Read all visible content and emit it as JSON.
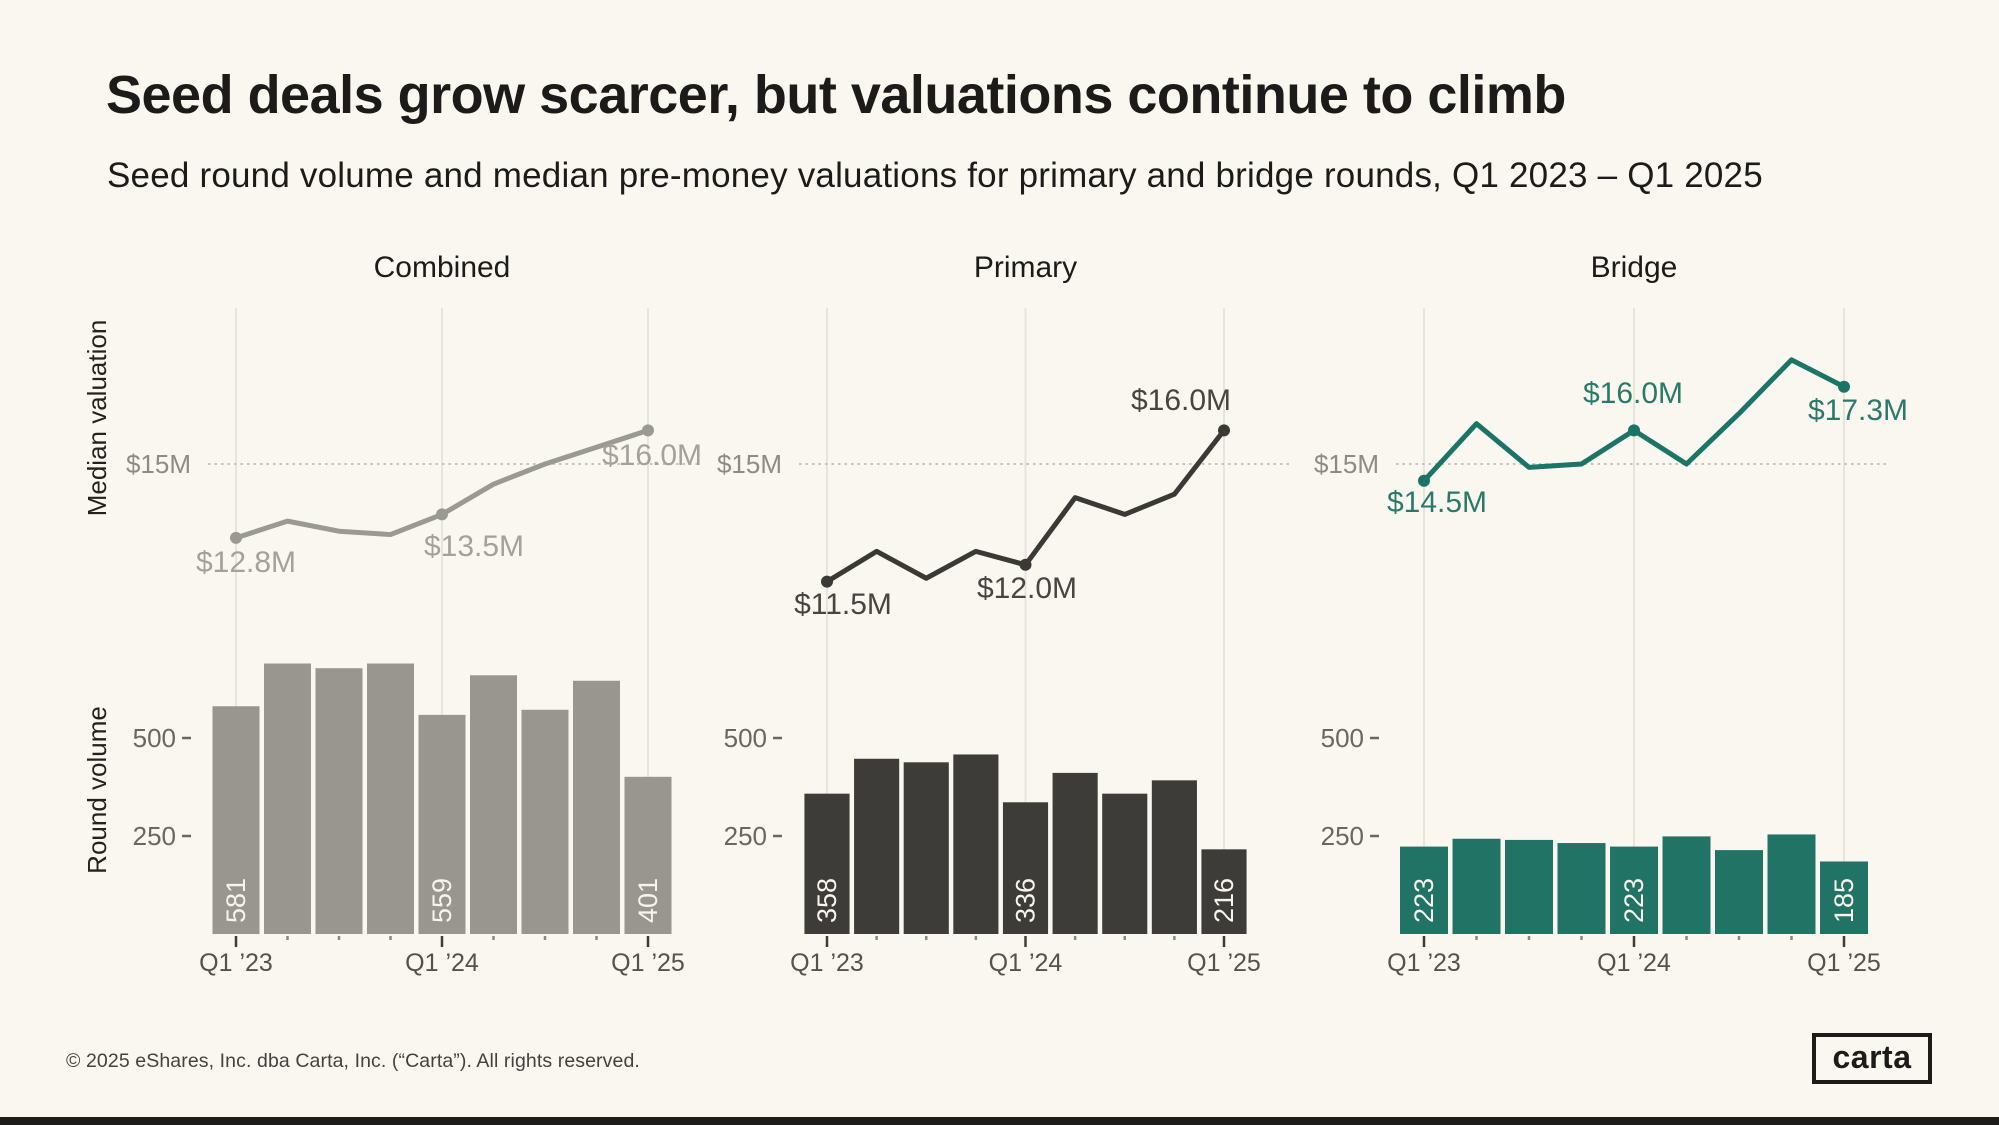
{
  "page": {
    "title": "Seed deals grow scarcer, but valuations continue to climb",
    "subtitle": "Seed round volume and median pre-money valuations for primary and bridge rounds, Q1 2023 – Q1 2025",
    "footer": "© 2025 eShares, Inc. dba Carta, Inc. (“Carta”). All rights reserved.",
    "logo_text": "carta"
  },
  "colors": {
    "background": "#FAF7F0",
    "ink": "#1C1B19",
    "bottom_bar": "#1D1C1A",
    "grid": "#E9E4DB",
    "dotted_line": "#C7C2BA",
    "tick_label": "#6B6760",
    "gridline_value_label": "#8F8B84",
    "x_label": "#55524B",
    "axis_title": "#23221F",
    "bar_value_text": "#F8F4EC",
    "combined": "#98968F",
    "combined_line": "#9B9994",
    "combined_label": "#A4A09A",
    "primary": "#3E3C39",
    "primary_line": "#3B3936",
    "primary_label": "#474542",
    "bridge": "#207365",
    "bridge_line": "#1B7566",
    "bridge_label": "#2A7A6A"
  },
  "axes": {
    "valuation_axis_title": "Median valuation",
    "volume_axis_title": "Round volume",
    "valuation_gridline": {
      "value": 15,
      "label": "$15M"
    },
    "volume_ticks": [
      {
        "value": 500,
        "label": "500"
      },
      {
        "value": 250,
        "label": "250"
      }
    ],
    "x_tick_labels": [
      "Q1 ’23",
      "Q1 ’24",
      "Q1 ’25"
    ]
  },
  "chart_data": [
    {
      "type": "line+bar",
      "title": "Combined",
      "x": [
        "Q1 '23",
        "Q2 '23",
        "Q3 '23",
        "Q4 '23",
        "Q1 '24",
        "Q2 '24",
        "Q3 '24",
        "Q4 '24",
        "Q1 '25"
      ],
      "median_valuation_musd": [
        12.8,
        13.3,
        13.0,
        12.9,
        13.5,
        14.4,
        15.0,
        15.5,
        16.0
      ],
      "valuation_point_labels": [
        {
          "index": 0,
          "label": "$12.8M"
        },
        {
          "index": 4,
          "label": "$13.5M"
        },
        {
          "index": 8,
          "label": "$16.0M"
        }
      ],
      "round_volume": [
        581,
        690,
        678,
        690,
        559,
        660,
        572,
        646,
        401
      ],
      "volume_bar_labels": [
        {
          "index": 0,
          "label": "581"
        },
        {
          "index": 4,
          "label": "559"
        },
        {
          "index": 8,
          "label": "401"
        }
      ],
      "color_key": "combined"
    },
    {
      "type": "line+bar",
      "title": "Primary",
      "x": [
        "Q1 '23",
        "Q2 '23",
        "Q3 '23",
        "Q4 '23",
        "Q1 '24",
        "Q2 '24",
        "Q3 '24",
        "Q4 '24",
        "Q1 '25"
      ],
      "median_valuation_musd": [
        11.5,
        12.4,
        11.6,
        12.4,
        12.0,
        14.0,
        13.5,
        14.1,
        16.0
      ],
      "valuation_point_labels": [
        {
          "index": 0,
          "label": "$11.5M"
        },
        {
          "index": 4,
          "label": "$12.0M"
        },
        {
          "index": 8,
          "label": "$16.0M"
        }
      ],
      "round_volume": [
        358,
        447,
        438,
        458,
        336,
        411,
        358,
        392,
        216
      ],
      "volume_bar_labels": [
        {
          "index": 0,
          "label": "358"
        },
        {
          "index": 4,
          "label": "336"
        },
        {
          "index": 8,
          "label": "216"
        }
      ],
      "color_key": "primary"
    },
    {
      "type": "line+bar",
      "title": "Bridge",
      "x": [
        "Q1 '23",
        "Q2 '23",
        "Q3 '23",
        "Q4 '23",
        "Q1 '24",
        "Q2 '24",
        "Q3 '24",
        "Q4 '24",
        "Q1 '25"
      ],
      "median_valuation_musd": [
        14.5,
        16.2,
        14.9,
        15.0,
        16.0,
        15.0,
        16.5,
        18.1,
        17.3
      ],
      "valuation_point_labels": [
        {
          "index": 0,
          "label": "$14.5M"
        },
        {
          "index": 4,
          "label": "$16.0M"
        },
        {
          "index": 8,
          "label": "$17.3M"
        }
      ],
      "round_volume": [
        223,
        243,
        240,
        232,
        223,
        249,
        214,
        254,
        185
      ],
      "volume_bar_labels": [
        {
          "index": 0,
          "label": "223"
        },
        {
          "index": 4,
          "label": "223"
        },
        {
          "index": 8,
          "label": "185"
        }
      ],
      "color_key": "bridge"
    }
  ]
}
